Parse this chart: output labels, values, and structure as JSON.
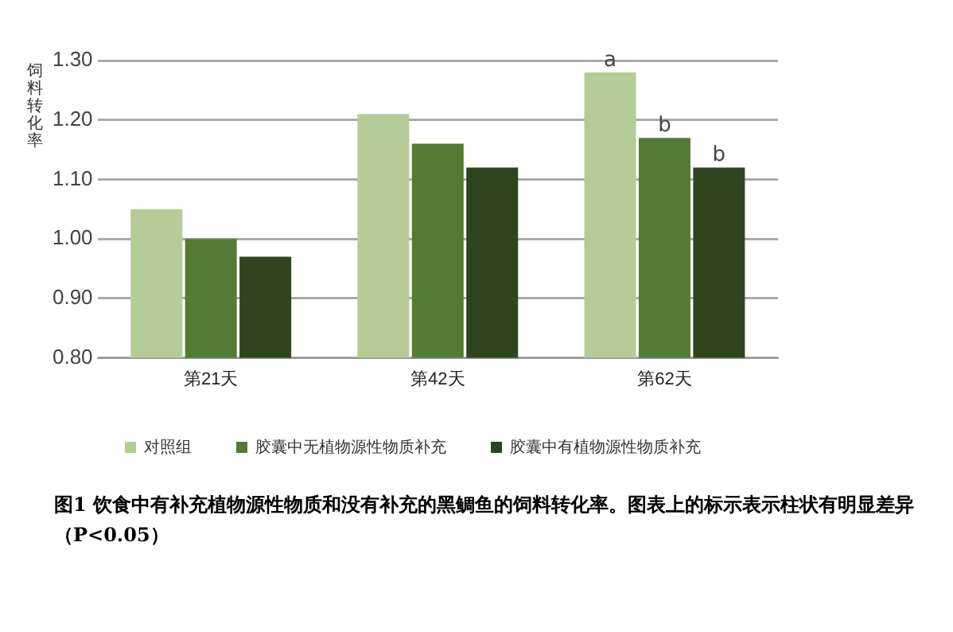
{
  "chart_data": {
    "type": "bar",
    "ylabel": "饲料转化率",
    "categories": [
      "第21天",
      "第42天",
      "第62天"
    ],
    "series": [
      {
        "name": "对照组",
        "color": "#b5cc98",
        "values": [
          1.05,
          1.21,
          1.28
        ]
      },
      {
        "name": "胶囊中无植物源性物质补充",
        "color": "#557a35",
        "values": [
          1.0,
          1.16,
          1.17
        ]
      },
      {
        "name": "胶囊中有植物源性物质补充",
        "color": "#2e4520",
        "values": [
          0.97,
          1.12,
          1.12
        ]
      }
    ],
    "ylim": [
      0.8,
      1.3
    ],
    "yticks": [
      {
        "value": 0.8,
        "label": "0.80"
      },
      {
        "value": 0.9,
        "label": "0.90"
      },
      {
        "value": 1.0,
        "label": "1.00"
      },
      {
        "value": 1.1,
        "label": "1.10"
      },
      {
        "value": 1.2,
        "label": "1.20"
      },
      {
        "value": 1.3,
        "label": "1.30"
      }
    ],
    "grid": "y",
    "legend": "bottom",
    "annotations": [
      "a",
      "b",
      "b",
      "图1 饮食中有补充植物源性物质和没有补充的黑鲷鱼的饲料转化率。图表上的标示表示柱状有明显差异（P<0.05）"
    ]
  }
}
